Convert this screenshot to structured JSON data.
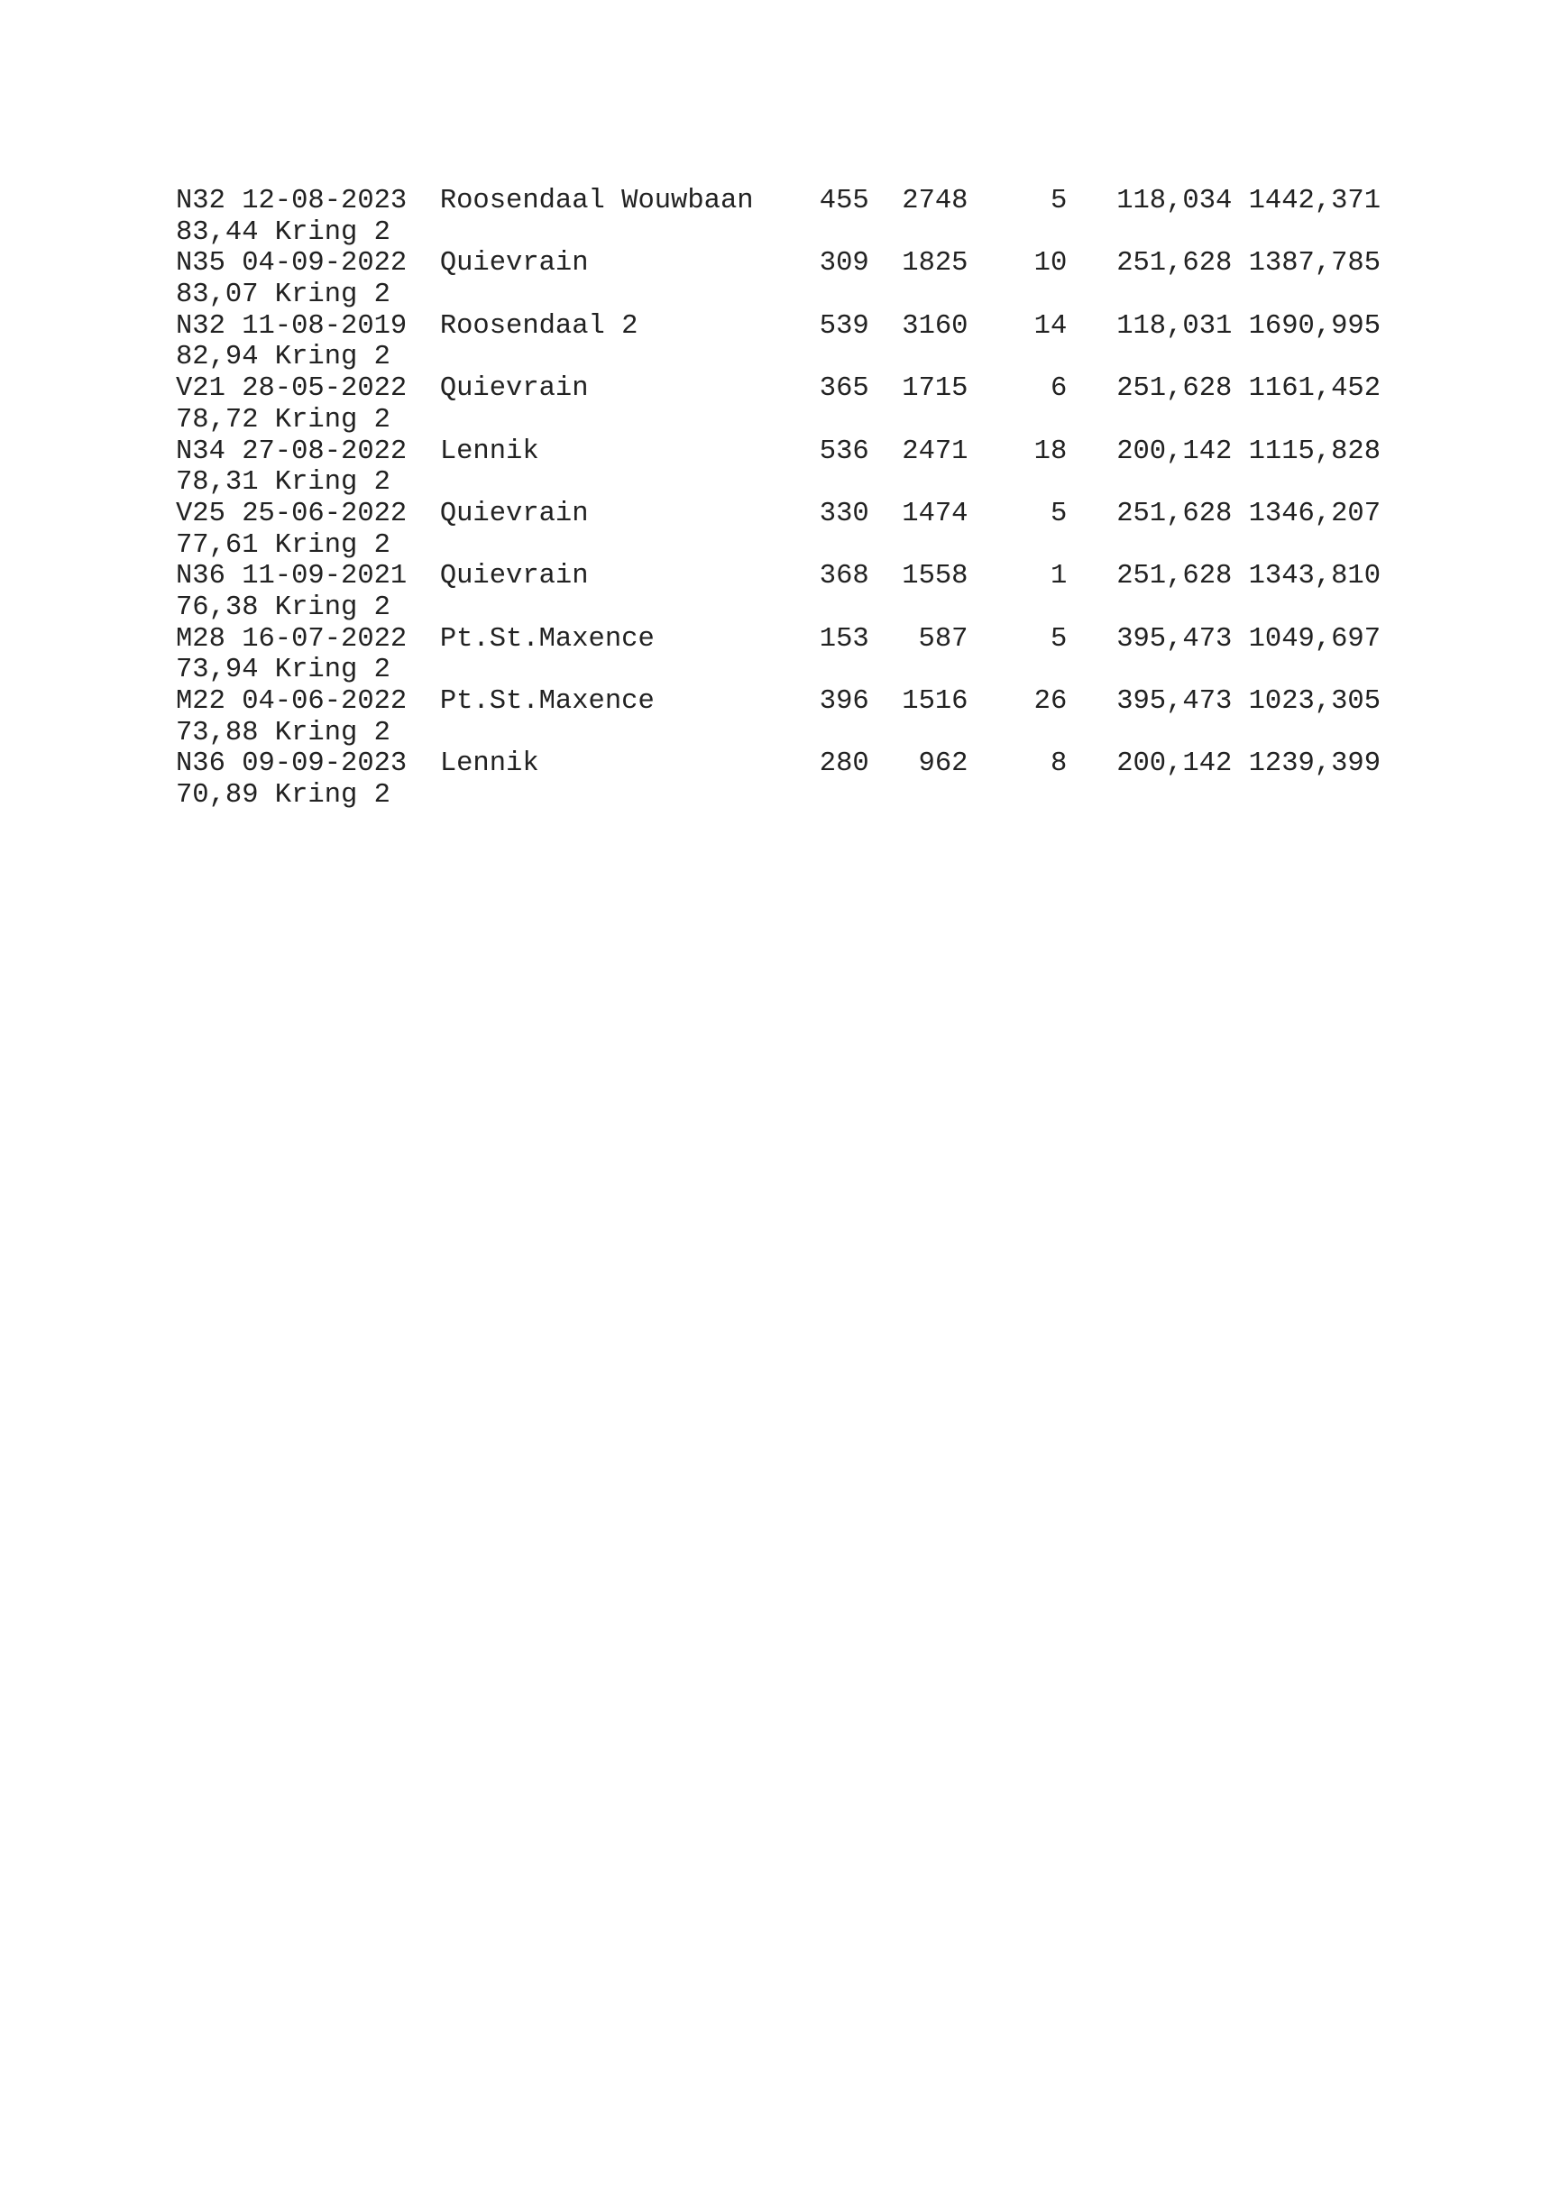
{
  "rows": [
    {
      "code": "N32",
      "date": "12-08-2023",
      "place": "Roosendaal Wouwbaan",
      "n1": "455",
      "n2": "2748",
      "n3": "5",
      "n4": "118,034",
      "n5": "1442,371",
      "score": "83,44",
      "kring": "Kring 2"
    },
    {
      "code": "N35",
      "date": "04-09-2022",
      "place": "Quievrain",
      "n1": "309",
      "n2": "1825",
      "n3": "10",
      "n4": "251,628",
      "n5": "1387,785",
      "score": "83,07",
      "kring": "Kring 2"
    },
    {
      "code": "N32",
      "date": "11-08-2019",
      "place": "Roosendaal 2",
      "n1": "539",
      "n2": "3160",
      "n3": "14",
      "n4": "118,031",
      "n5": "1690,995",
      "score": "82,94",
      "kring": "Kring 2"
    },
    {
      "code": "V21",
      "date": "28-05-2022",
      "place": "Quievrain",
      "n1": "365",
      "n2": "1715",
      "n3": "6",
      "n4": "251,628",
      "n5": "1161,452",
      "score": "78,72",
      "kring": "Kring 2"
    },
    {
      "code": "N34",
      "date": "27-08-2022",
      "place": "Lennik",
      "n1": "536",
      "n2": "2471",
      "n3": "18",
      "n4": "200,142",
      "n5": "1115,828",
      "score": "78,31",
      "kring": "Kring 2"
    },
    {
      "code": "V25",
      "date": "25-06-2022",
      "place": "Quievrain",
      "n1": "330",
      "n2": "1474",
      "n3": "5",
      "n4": "251,628",
      "n5": "1346,207",
      "score": "77,61",
      "kring": "Kring 2"
    },
    {
      "code": "N36",
      "date": "11-09-2021",
      "place": "Quievrain",
      "n1": "368",
      "n2": "1558",
      "n3": "1",
      "n4": "251,628",
      "n5": "1343,810",
      "score": "76,38",
      "kring": "Kring 2"
    },
    {
      "code": "M28",
      "date": "16-07-2022",
      "place": "Pt.St.Maxence",
      "n1": "153",
      "n2": "587",
      "n3": "5",
      "n4": "395,473",
      "n5": "1049,697",
      "score": "73,94",
      "kring": "Kring 2"
    },
    {
      "code": "M22",
      "date": "04-06-2022",
      "place": "Pt.St.Maxence",
      "n1": "396",
      "n2": "1516",
      "n3": "26",
      "n4": "395,473",
      "n5": "1023,305",
      "score": "73,88",
      "kring": "Kring 2"
    },
    {
      "code": "N36",
      "date": "09-09-2023",
      "place": "Lennik",
      "n1": "280",
      "n2": "962",
      "n3": "8",
      "n4": "200,142",
      "n5": "1239,399",
      "score": "70,89",
      "kring": "Kring 2"
    }
  ]
}
